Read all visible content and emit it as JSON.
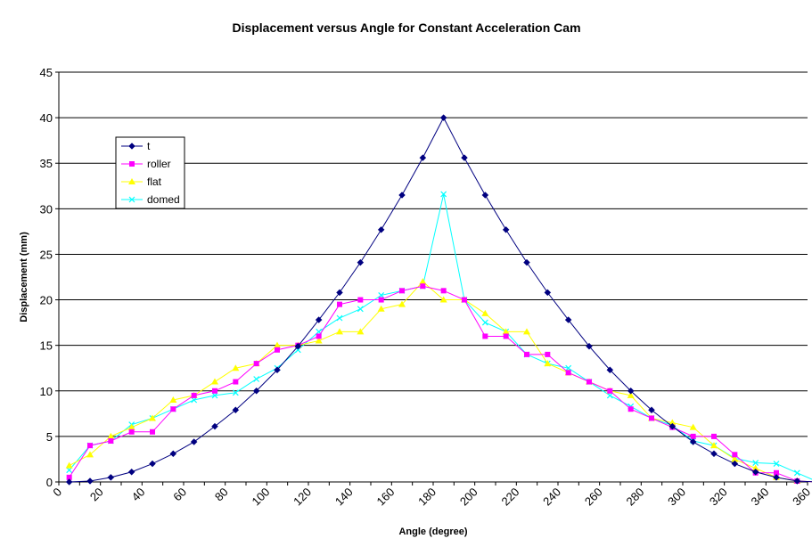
{
  "chart_data": {
    "type": "line",
    "title": "Displacement versus Angle for Constant Acceleration Cam",
    "xlabel": "Angle (degree)",
    "ylabel": "Displacement (mm)",
    "xlim": [
      0,
      360
    ],
    "ylim": [
      0,
      45
    ],
    "xticks": [
      0,
      20,
      40,
      60,
      80,
      100,
      120,
      140,
      160,
      180,
      200,
      220,
      240,
      260,
      280,
      300,
      320,
      340,
      360
    ],
    "yticks": [
      0,
      5,
      10,
      15,
      20,
      25,
      30,
      35,
      40,
      45
    ],
    "grid": "horizontal",
    "legend_position": "top-left",
    "x": [
      5,
      15,
      25,
      35,
      45,
      55,
      65,
      75,
      85,
      95,
      105,
      115,
      125,
      135,
      145,
      155,
      165,
      175,
      185,
      195,
      205,
      215,
      225,
      235,
      245,
      255,
      265,
      275,
      285,
      295,
      305,
      315,
      325,
      335,
      345,
      355,
      365
    ],
    "series": [
      {
        "name": "t",
        "color": "#000080",
        "marker": "diamond",
        "values": [
          0,
          0.1,
          0.5,
          1.1,
          2.0,
          3.1,
          4.4,
          6.1,
          7.9,
          10.0,
          12.3,
          14.9,
          17.8,
          20.8,
          24.1,
          27.7,
          31.5,
          35.6,
          40.0,
          35.6,
          31.5,
          27.7,
          24.1,
          20.8,
          17.8,
          14.9,
          12.3,
          10.0,
          7.9,
          6.1,
          4.4,
          3.1,
          2.0,
          1.1,
          0.5,
          0.1,
          0
        ]
      },
      {
        "name": "roller",
        "color": "#FF00FF",
        "marker": "square",
        "values": [
          0.5,
          4.0,
          4.5,
          5.5,
          5.5,
          8.0,
          9.5,
          10.0,
          11.0,
          13.0,
          14.5,
          15.0,
          16.0,
          19.5,
          20.0,
          20.0,
          21.0,
          21.5,
          21.0,
          20.0,
          16.0,
          16.0,
          14.0,
          14.0,
          12.0,
          11.0,
          10.0,
          8.0,
          7.0,
          6.0,
          5.0,
          5.0,
          3.0,
          1.0,
          1.0,
          0.1,
          0
        ]
      },
      {
        "name": "flat",
        "color": "#FFFF00",
        "marker": "triangle",
        "values": [
          1.8,
          3.0,
          5.0,
          6.0,
          7.0,
          9.0,
          9.5,
          11.0,
          12.5,
          13.0,
          15.0,
          15.0,
          15.5,
          16.5,
          16.5,
          19.0,
          19.5,
          22.0,
          20.0,
          20.0,
          18.5,
          16.5,
          16.5,
          13.0,
          12.0,
          11.0,
          10.0,
          9.5,
          7.0,
          6.5,
          6.0,
          4.0,
          2.5,
          1.5,
          0.5,
          0.1,
          0
        ]
      },
      {
        "name": "domed",
        "color": "#00FFFF",
        "marker": "x",
        "values": [
          1.3,
          4.0,
          4.5,
          6.3,
          7.0,
          8.0,
          9.0,
          9.5,
          9.8,
          11.3,
          12.5,
          14.5,
          16.5,
          18.0,
          19.0,
          20.5,
          21.0,
          21.5,
          31.6,
          20.0,
          17.5,
          16.5,
          14.0,
          13.0,
          12.5,
          11.0,
          9.5,
          8.3,
          7.0,
          6.2,
          4.5,
          4.0,
          2.6,
          2.1,
          2.0,
          1.0,
          0
        ]
      }
    ]
  }
}
